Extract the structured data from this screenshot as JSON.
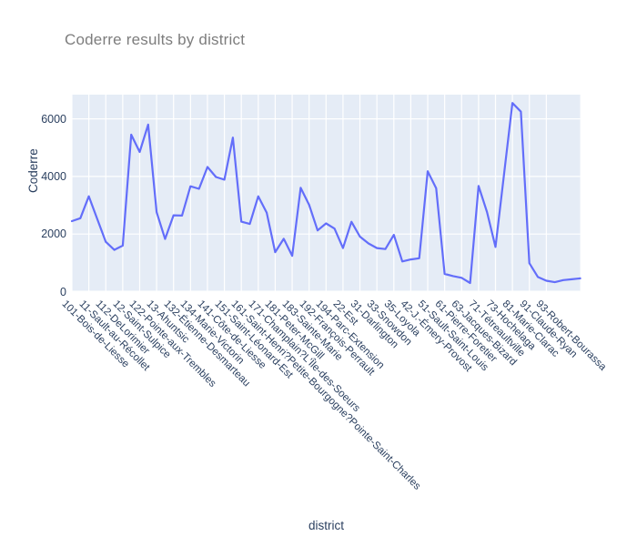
{
  "title": "Coderre results by district",
  "x_axis": {
    "title": "district"
  },
  "y_axis": {
    "title": "Coderre",
    "tick_labels": [
      "0",
      "2000",
      "4000",
      "6000"
    ]
  },
  "colors": {
    "line": "#636EFA",
    "plot_background": "#E5ECF6",
    "gridline": "#FFFFFF",
    "axis_text": "#2a3f5f",
    "title_text": "#7d7d7d",
    "page_background": "#FFFFFF"
  },
  "chart_data": {
    "type": "line",
    "title": "Coderre results by district",
    "xlabel": "district",
    "ylabel": "Coderre",
    "legend": false,
    "grid": true,
    "ylim": [
      0,
      6840
    ],
    "y_ticks": [
      0,
      2000,
      4000,
      6000
    ],
    "x_tick_labels": [
      "101-Bois-de-Liesse",
      "11-Sault-au-Récollet",
      "112-DeLorimier",
      "12-Saint-Sulpice",
      "122-Pointe-aux-Trembles",
      "13-Ahuntsic",
      "132-Étienne-Desmarteau",
      "134-Marie-Victorin",
      "141-Côte-de-Liesse",
      "151-Saint-Léonard-Est",
      "161-Saint-Henri?Petite-Bourgogne?Pointe-Saint-Charles",
      "171-Champlain?L'Île-des-Soeurs",
      "181-Peter-McGill",
      "183-Sainte-Marie",
      "192-François-Perrault",
      "194-Parc-Extension",
      "22-Est",
      "31-Darlington",
      "33-Snowdon",
      "35-Loyola",
      "42-J.-Émery-Provost",
      "51-Sault-Saint-Louis",
      "61-Pierre-Foretier",
      "63-Jacques-Bizard",
      "71-Tétreaultville",
      "73-Hochelaga",
      "81-Marie-Clarac",
      "91-Claude-Ryan",
      "93-Robert-Bourassa"
    ],
    "ticks_every_n_points": 2,
    "values": [
      2450,
      2550,
      3310,
      2520,
      1730,
      1450,
      1600,
      5450,
      4850,
      5800,
      2760,
      1830,
      2650,
      2640,
      3660,
      3570,
      4330,
      3980,
      3890,
      5350,
      2430,
      2350,
      3310,
      2740,
      1370,
      1835,
      1245,
      3605,
      3015,
      2125,
      2370,
      2190,
      1515,
      2425,
      1910,
      1675,
      1515,
      1480,
      1970,
      1050,
      1120,
      1160,
      4180,
      3590,
      615,
      540,
      480,
      300,
      3670,
      2760,
      1550,
      4050,
      6550,
      6250,
      990,
      510,
      380,
      330,
      400,
      430,
      460
    ]
  }
}
